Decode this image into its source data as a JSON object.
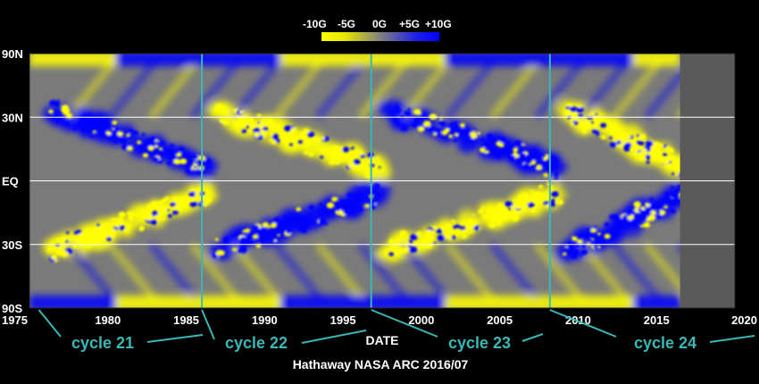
{
  "chart_data": {
    "type": "heatmap",
    "title": "",
    "xlabel": "DATE",
    "ylabel": "",
    "xlim": [
      1975,
      2020
    ],
    "x_ticks": [
      {
        "value": 1975,
        "label": "1975"
      },
      {
        "value": 1980,
        "label": "1980"
      },
      {
        "value": 1985,
        "label": "1985"
      },
      {
        "value": 1990,
        "label": "1990"
      },
      {
        "value": 1995,
        "label": "1995"
      },
      {
        "value": 2000,
        "label": "2000"
      },
      {
        "value": 2005,
        "label": "2005"
      },
      {
        "value": 2010,
        "label": "2010"
      },
      {
        "value": 2015,
        "label": "2015"
      },
      {
        "value": 2020,
        "label": "2020"
      }
    ],
    "y_ticks": [
      {
        "label": "90N",
        "sin_lat": 1.0
      },
      {
        "label": "30N",
        "sin_lat": 0.5
      },
      {
        "label": "EQ",
        "sin_lat": 0.0
      },
      {
        "label": "30S",
        "sin_lat": -0.5
      },
      {
        "label": "90S",
        "sin_lat": -1.0
      }
    ],
    "gridlines_y": [
      0.5,
      0.0,
      -0.5
    ],
    "data_end_year": 2016.5,
    "colorbar": {
      "labels": [
        "-10G",
        "-5G",
        "0G",
        "+5G",
        "+10G"
      ],
      "range": [
        -10,
        10
      ],
      "colors": [
        "#ffff00",
        "#808080",
        "#0000ff"
      ]
    },
    "cycle_boundaries": [
      {
        "year": 1986.0,
        "label": "cycle 22"
      },
      {
        "year": 1996.8,
        "label": "cycle 23"
      },
      {
        "year": 2008.2,
        "label": "cycle 24"
      }
    ],
    "cycles": [
      {
        "label": "cycle 21"
      },
      {
        "label": "cycle 22"
      },
      {
        "label": "cycle 23"
      },
      {
        "label": "cycle 24"
      }
    ],
    "credit": "Hathaway NASA ARC 2016/07",
    "colors": {
      "positive": "#0000ff",
      "negative": "#ffff00",
      "neutral": "#808080",
      "boundary_line": "#3ab7b7",
      "grid": "#ffffff",
      "no_data": "#5a5a5a"
    }
  }
}
